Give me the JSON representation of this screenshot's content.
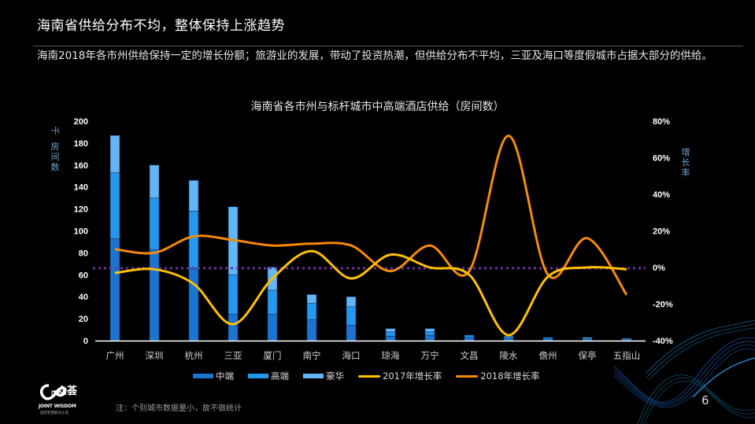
{
  "header": {
    "title": "海南省供给分布不均，整体保持上涨趋势",
    "description": "海南2018年各市州供给保持一定的增长份额；旅游业的发展，带动了投资热潮，但供给分布不平均，三亚及海口等度假城市占据大部分的供给。"
  },
  "chart_data": {
    "type": "bar",
    "subtype": "stacked bar + dual-axis line",
    "title": "海南省各市州与标杆城市中高端酒店供给（房间数）",
    "categories": [
      "广州",
      "深圳",
      "杭州",
      "三亚",
      "厦门",
      "南宁",
      "海口",
      "琼海",
      "万宁",
      "文昌",
      "陵水",
      "儋州",
      "保亭",
      "五指山"
    ],
    "series": [
      {
        "name": "中端",
        "type": "bar",
        "axis": "left",
        "color": "#1c74d1",
        "values": [
          93,
          83,
          66,
          24,
          24,
          19,
          14,
          4,
          5,
          3,
          2,
          2,
          1,
          1
        ]
      },
      {
        "name": "高端",
        "type": "bar",
        "axis": "left",
        "color": "#2497ee",
        "values": [
          60,
          47,
          52,
          36,
          22,
          15,
          17,
          4,
          3,
          2,
          1,
          1,
          1,
          0
        ]
      },
      {
        "name": "豪华",
        "type": "bar",
        "axis": "left",
        "color": "#64b5f6",
        "values": [
          34,
          30,
          28,
          62,
          21,
          8,
          9,
          3,
          3,
          0,
          1,
          0,
          1,
          1
        ]
      },
      {
        "name": "2017年增长率",
        "type": "line",
        "axis": "right",
        "color": "#ffc000",
        "values": [
          -3,
          -1,
          -9,
          -31,
          -6,
          9,
          -6,
          7,
          0,
          -4,
          -37,
          -5,
          0,
          -1
        ]
      },
      {
        "name": "2018年增长率",
        "type": "line",
        "axis": "right",
        "color": "#f58a0b",
        "values": [
          10,
          8,
          17,
          15,
          12,
          13,
          12,
          -2,
          12,
          -2,
          72,
          -4,
          16,
          -15
        ]
      }
    ],
    "left_axis": {
      "label": "千房间数",
      "ticks": [
        0,
        20,
        40,
        60,
        80,
        100,
        120,
        140,
        160,
        180,
        200
      ],
      "ylim": [
        0,
        200
      ]
    },
    "right_axis": {
      "label": "增长率",
      "ticks": [
        "80%",
        "60%",
        "40%",
        "20%",
        "0%",
        "-20%",
        "-40%"
      ],
      "ylim": [
        -40,
        80
      ]
    },
    "reference_line": {
      "value": "0%",
      "style": "dotted",
      "color": "#7030a0"
    },
    "legend_position": "bottom",
    "grid": false
  },
  "chart": {
    "title": "海南省各市州与标杆城市中高端酒店供给（房间数）",
    "left_unit_top": "千",
    "left_unit": "房间数",
    "right_unit": "增长率",
    "left_ticks": [
      "200",
      "180",
      "160",
      "140",
      "120",
      "100",
      "80",
      "60",
      "40",
      "20",
      "0"
    ],
    "right_ticks": [
      "80%",
      "60%",
      "40%",
      "20%",
      "0%",
      "-20%",
      "-40%"
    ],
    "legend": [
      "中端",
      "高端",
      "豪华",
      "2017年增长率",
      "2018年增长率"
    ]
  },
  "footer": {
    "logo_cn": "众荟",
    "logo_en": "JOINT WISDOM",
    "logo_sub": "酒店智慧解决之道",
    "note": "注：个别城市数据量小，故不做统计",
    "page_number": "6"
  }
}
